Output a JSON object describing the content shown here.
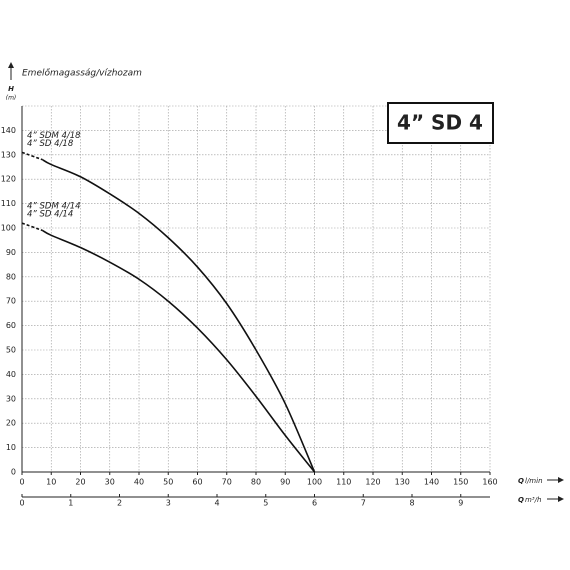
{
  "chart_data": {
    "type": "line",
    "title": "4” SD 4",
    "y_caption": "Emelőmagasság/vízhozam",
    "y_label": "H",
    "y_unit": "(m)",
    "x_label": "Q",
    "x_unit": "l/min",
    "x2_label": "Q",
    "x2_unit": "m³/h",
    "xlim": [
      0,
      160
    ],
    "xticks": [
      0,
      10,
      20,
      30,
      40,
      50,
      60,
      70,
      80,
      90,
      100,
      110,
      120,
      130,
      140,
      150,
      160
    ],
    "x2lim": [
      0,
      9.6
    ],
    "x2ticks": [
      0,
      1,
      2,
      3,
      4,
      5,
      6,
      7,
      8,
      9
    ],
    "ylim": [
      0,
      150
    ],
    "yticks": [
      0,
      10,
      20,
      30,
      40,
      50,
      60,
      70,
      80,
      90,
      100,
      110,
      120,
      130,
      140
    ],
    "grid": true,
    "series": [
      {
        "labels": [
          "4” SDM 4/18",
          "4” SD 4/18"
        ],
        "color": "#111111",
        "dashed_until": 7,
        "x": [
          0,
          7,
          10,
          20,
          30,
          40,
          50,
          60,
          70,
          80,
          90,
          100
        ],
        "values": [
          131,
          128,
          126,
          121,
          114,
          106,
          96,
          84,
          69,
          50,
          28,
          0
        ]
      },
      {
        "labels": [
          "4” SDM 4/14",
          "4” SD 4/14"
        ],
        "color": "#111111",
        "dashed_until": 7,
        "x": [
          0,
          7,
          10,
          20,
          30,
          40,
          50,
          60,
          70,
          80,
          90,
          100
        ],
        "values": [
          102,
          99,
          97,
          92,
          86,
          79,
          70,
          59,
          46,
          31,
          15,
          0
        ]
      }
    ]
  }
}
